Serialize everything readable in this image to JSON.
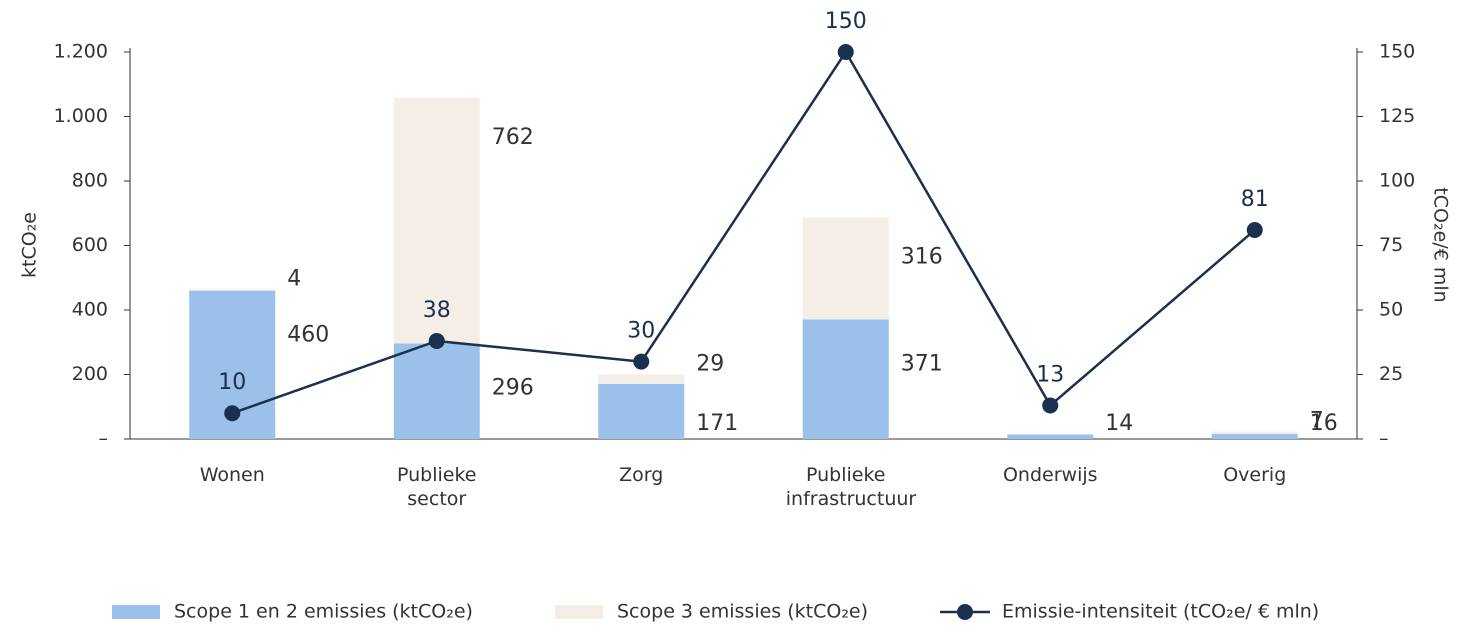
{
  "chart_data": {
    "type": "bar",
    "stacked": true,
    "categories": [
      "Wonen",
      "Publieke sector",
      "Zorg",
      "Publieke infrastructuur",
      "Onderwijs",
      "Overig"
    ],
    "series": [
      {
        "name": "Scope 1 en 2 emissies (ktCO₂e)",
        "color": "#9bc0ea",
        "values": [
          460,
          296,
          171,
          371,
          14,
          16
        ]
      },
      {
        "name": "Scope 3 emissies (ktCO₂e)",
        "color": "#f5eee6",
        "values": [
          4,
          762,
          29,
          316,
          0,
          7
        ],
        "value_labels": [
          "4",
          "762",
          "29",
          "316",
          null,
          "7"
        ]
      },
      {
        "name": "Emissie-intensiteit (tCO₂e/ € mln)",
        "color": "#1b2f4f",
        "type": "line",
        "axis": "y2",
        "values": [
          10,
          38,
          30,
          150,
          13,
          81
        ]
      }
    ],
    "ylabel": "ktCO₂e",
    "y2label": "tCO₂e/€ mln",
    "ylim": [
      0,
      1200
    ],
    "yticks": [
      {
        "value": 0,
        "label": "–"
      },
      200,
      400,
      600,
      800,
      {
        "value": 1000,
        "label": "1.000"
      },
      {
        "value": 1200,
        "label": "1.200"
      }
    ],
    "y2lim": [
      0,
      150
    ],
    "y2ticks": [
      {
        "value": 0,
        "label": "–"
      },
      25,
      50,
      75,
      100,
      125,
      150
    ],
    "legend": "bottom"
  }
}
